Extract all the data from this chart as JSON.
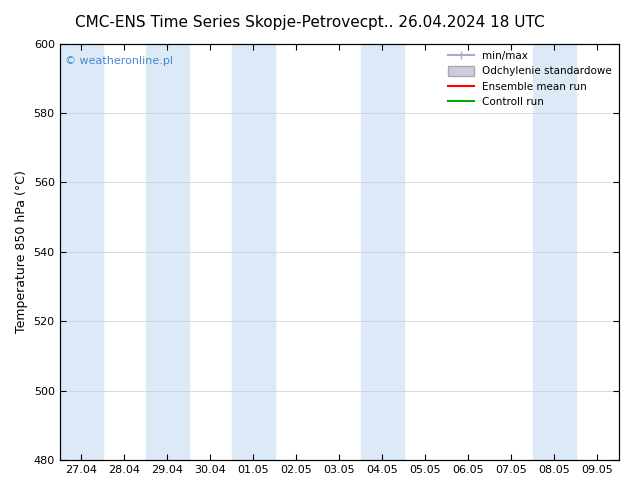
{
  "title_left": "CMC-ENS Time Series Skopje-Petrovec",
  "title_right": "pt.. 26.04.2024 18 UTC",
  "ylabel": "Temperature 850 hPa (°C)",
  "ylim": [
    480,
    600
  ],
  "yticks": [
    480,
    500,
    520,
    540,
    560,
    580,
    600
  ],
  "x_labels": [
    "27.04",
    "28.04",
    "29.04",
    "30.04",
    "01.05",
    "02.05",
    "03.05",
    "04.05",
    "05.05",
    "06.05",
    "07.05",
    "08.05",
    "09.05"
  ],
  "x_positions": [
    0,
    1,
    2,
    3,
    4,
    5,
    6,
    7,
    8,
    9,
    10,
    11,
    12
  ],
  "shaded_columns": [
    0,
    2,
    4,
    7,
    11
  ],
  "shade_color": "#dce9f7",
  "bg_color": "#ffffff",
  "watermark": "© weatheronline.pl",
  "watermark_color": "#4488cc",
  "legend_items": [
    {
      "label": "min/max",
      "color": "#aaaacc",
      "type": "errorbar"
    },
    {
      "label": "Odchylenie standardowe",
      "color": "#ccccdd",
      "type": "bar"
    },
    {
      "label": "Ensemble mean run",
      "color": "#ff0000",
      "type": "line"
    },
    {
      "label": "Controll run",
      "color": "#00aa00",
      "type": "line"
    }
  ],
  "grid_color": "#cccccc",
  "axis_color": "#000000",
  "title_fontsize": 11,
  "tick_fontsize": 8,
  "ylabel_fontsize": 9
}
